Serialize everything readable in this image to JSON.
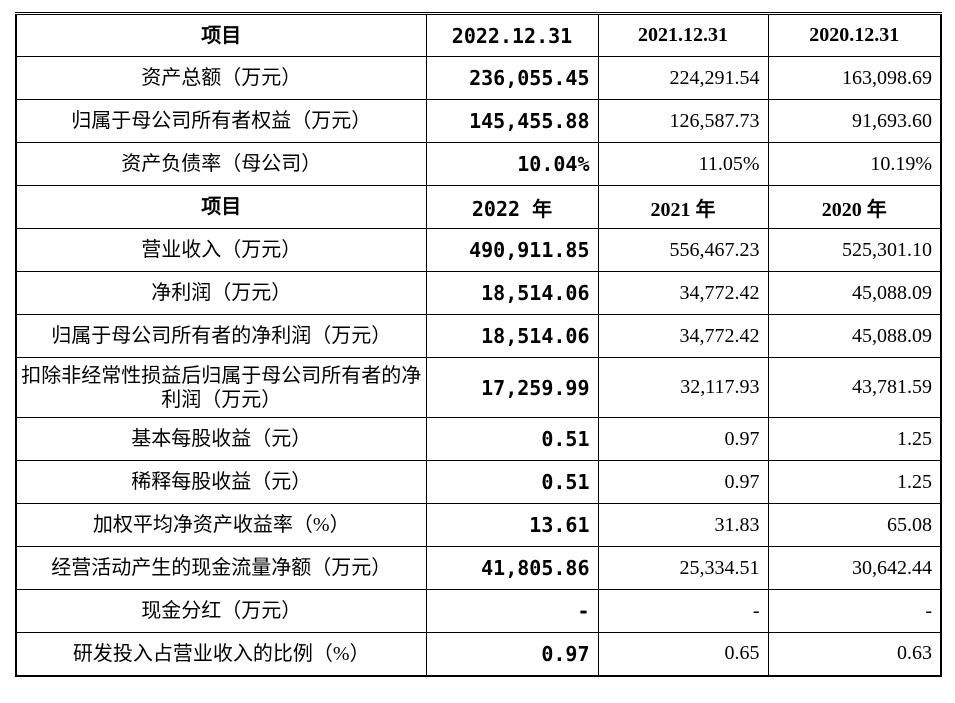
{
  "table": {
    "sections": [
      {
        "header": [
          "项目",
          "2022.12.31",
          "2021.12.31",
          "2020.12.31"
        ],
        "rows": [
          [
            "资产总额（万元）",
            "236,055.45",
            "224,291.54",
            "163,098.69"
          ],
          [
            "归属于母公司所有者权益（万元）",
            "145,455.88",
            "126,587.73",
            "91,693.60"
          ],
          [
            "资产负债率（母公司）",
            "10.04%",
            "11.05%",
            "10.19%"
          ]
        ]
      },
      {
        "header": [
          "项目",
          "2022 年",
          "2021 年",
          "2020 年"
        ],
        "rows": [
          [
            "营业收入（万元）",
            "490,911.85",
            "556,467.23",
            "525,301.10"
          ],
          [
            "净利润（万元）",
            "18,514.06",
            "34,772.42",
            "45,088.09"
          ],
          [
            "归属于母公司所有者的净利润（万元）",
            "18,514.06",
            "34,772.42",
            "45,088.09"
          ],
          [
            "扣除非经常性损益后归属于母公司所有者的净利润（万元）",
            "17,259.99",
            "32,117.93",
            "43,781.59"
          ],
          [
            "基本每股收益（元）",
            "0.51",
            "0.97",
            "1.25"
          ],
          [
            "稀释每股收益（元）",
            "0.51",
            "0.97",
            "1.25"
          ],
          [
            "加权平均净资产收益率（%）",
            "13.61",
            "31.83",
            "65.08"
          ],
          [
            "经营活动产生的现金流量净额（万元）",
            "41,805.86",
            "25,334.51",
            "30,642.44"
          ],
          [
            "现金分红（万元）",
            "-",
            "-",
            "-"
          ],
          [
            "研发投入占营业收入的比例（%）",
            "0.97",
            "0.65",
            "0.63"
          ]
        ]
      }
    ]
  }
}
